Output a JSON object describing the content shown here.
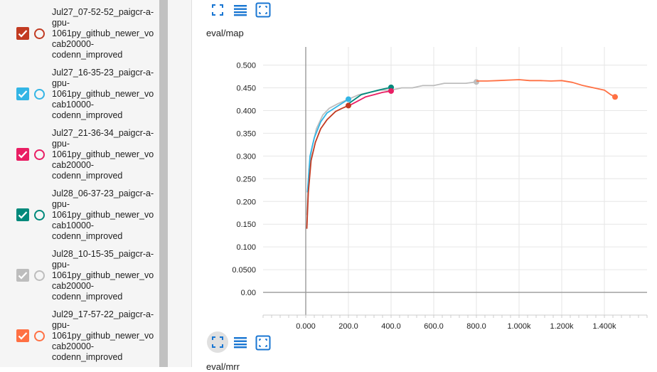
{
  "sidebar": {
    "runs": [
      {
        "name": "Jul27_07-52-52_paigcr-a-gpu-1061py_github_newer_vocab20000-codenn_improved",
        "lines": [
          "Jul27_07-52-52_paigcr-a-",
          "gpu-",
          "1061py_github_newer_vo",
          "cab20000-",
          "codenn_improved"
        ],
        "color": "#c23b22",
        "checked": true
      },
      {
        "name": "Jul27_16-35-23_paigcr-a-gpu-1061py_github_newer_vocab10000-codenn_improved",
        "lines": [
          "Jul27_16-35-23_paigcr-a-",
          "gpu-",
          "1061py_github_newer_vo",
          "cab10000-",
          "codenn_improved"
        ],
        "color": "#33b5e5",
        "checked": true
      },
      {
        "name": "Jul27_21-36-34_paigcr-a-gpu-1061py_github_newer_vocab20000-codenn_improved",
        "lines": [
          "Jul27_21-36-34_paigcr-a-",
          "gpu-",
          "1061py_github_newer_vo",
          "cab20000-",
          "codenn_improved"
        ],
        "color": "#e91e63",
        "checked": true
      },
      {
        "name": "Jul28_06-37-23_paigcr-a-gpu-1061py_github_newer_vocab10000-codenn_improved",
        "lines": [
          "Jul28_06-37-23_paigcr-a-",
          "gpu-",
          "1061py_github_newer_vo",
          "cab10000-",
          "codenn_improved"
        ],
        "color": "#00897b",
        "checked": true
      },
      {
        "name": "Jul28_10-15-35_paigcr-a-gpu-1061py_github_newer_vocab20000-codenn_improved",
        "lines": [
          "Jul28_10-15-35_paigcr-a-",
          "gpu-",
          "1061py_github_newer_vo",
          "cab20000-",
          "codenn_improved"
        ],
        "color": "#bdbdbd",
        "checked": true
      },
      {
        "name": "Jul29_17-57-22_paigcr-a-gpu-1061py_github_newer_vocab20000-codenn_improved",
        "lines": [
          "Jul29_17-57-22_paigcr-a-",
          "gpu-",
          "1061py_github_newer_vo",
          "cab20000-",
          "codenn_improved"
        ],
        "color": "#ff7043",
        "checked": true
      }
    ]
  },
  "toolbar": {
    "icons": [
      "fit-domain-icon",
      "toggle-log-icon",
      "zoom-icon"
    ]
  },
  "card": {
    "title": "eval/map"
  },
  "next_card": {
    "title": "eval/mrr"
  },
  "chart_data": {
    "type": "line",
    "title": "eval/map",
    "xlabel": "",
    "ylabel": "",
    "xlim": [
      -200,
      1600
    ],
    "ylim": [
      -0.05,
      0.54
    ],
    "x_ticks": [
      0,
      200,
      400,
      600,
      800,
      1000,
      1200,
      1400
    ],
    "x_tick_labels": [
      "0.000",
      "200.0",
      "400.0",
      "600.0",
      "800.0",
      "1.000k",
      "1.200k",
      "1.400k"
    ],
    "y_ticks": [
      0,
      0.05,
      0.1,
      0.15,
      0.2,
      0.25,
      0.3,
      0.35,
      0.4,
      0.45,
      0.5
    ],
    "y_tick_labels": [
      "0.00",
      "0.0500",
      "0.100",
      "0.150",
      "0.200",
      "0.250",
      "0.300",
      "0.350",
      "0.400",
      "0.450",
      "0.500"
    ],
    "grid": true,
    "series": [
      {
        "color": "#bdbdbd",
        "end_marker": true,
        "points": [
          [
            5,
            0.17
          ],
          [
            15,
            0.27
          ],
          [
            30,
            0.32
          ],
          [
            50,
            0.36
          ],
          [
            80,
            0.39
          ],
          [
            110,
            0.405
          ],
          [
            150,
            0.415
          ],
          [
            200,
            0.425
          ],
          [
            250,
            0.435
          ],
          [
            300,
            0.44
          ],
          [
            350,
            0.445
          ],
          [
            400,
            0.445
          ],
          [
            450,
            0.45
          ],
          [
            500,
            0.45
          ],
          [
            550,
            0.455
          ],
          [
            600,
            0.455
          ],
          [
            650,
            0.46
          ],
          [
            700,
            0.46
          ],
          [
            750,
            0.46
          ],
          [
            800,
            0.463
          ]
        ]
      },
      {
        "color": "#ff7043",
        "end_marker": true,
        "points": [
          [
            800,
            0.465
          ],
          [
            850,
            0.465
          ],
          [
            900,
            0.466
          ],
          [
            950,
            0.467
          ],
          [
            1000,
            0.468
          ],
          [
            1050,
            0.466
          ],
          [
            1100,
            0.466
          ],
          [
            1150,
            0.465
          ],
          [
            1200,
            0.466
          ],
          [
            1250,
            0.462
          ],
          [
            1300,
            0.455
          ],
          [
            1350,
            0.45
          ],
          [
            1400,
            0.445
          ],
          [
            1430,
            0.435
          ],
          [
            1450,
            0.43
          ]
        ]
      },
      {
        "color": "#33b5e5",
        "end_marker": true,
        "points": [
          [
            8,
            0.22
          ],
          [
            20,
            0.3
          ],
          [
            40,
            0.34
          ],
          [
            70,
            0.375
          ],
          [
            100,
            0.395
          ],
          [
            150,
            0.41
          ],
          [
            200,
            0.425
          ]
        ]
      },
      {
        "color": "#00897b",
        "end_marker": true,
        "points": [
          [
            200,
            0.415
          ],
          [
            230,
            0.425
          ],
          [
            260,
            0.435
          ],
          [
            300,
            0.44
          ],
          [
            340,
            0.445
          ],
          [
            370,
            0.448
          ],
          [
            400,
            0.451
          ]
        ]
      },
      {
        "color": "#e91e63",
        "end_marker": true,
        "points": [
          [
            200,
            0.41
          ],
          [
            240,
            0.42
          ],
          [
            280,
            0.43
          ],
          [
            320,
            0.435
          ],
          [
            360,
            0.44
          ],
          [
            400,
            0.443
          ]
        ]
      },
      {
        "color": "#c23b22",
        "end_marker": true,
        "points": [
          [
            5,
            0.14
          ],
          [
            12,
            0.22
          ],
          [
            25,
            0.29
          ],
          [
            45,
            0.33
          ],
          [
            70,
            0.36
          ],
          [
            100,
            0.38
          ],
          [
            140,
            0.398
          ],
          [
            170,
            0.405
          ],
          [
            200,
            0.411
          ]
        ]
      }
    ]
  }
}
